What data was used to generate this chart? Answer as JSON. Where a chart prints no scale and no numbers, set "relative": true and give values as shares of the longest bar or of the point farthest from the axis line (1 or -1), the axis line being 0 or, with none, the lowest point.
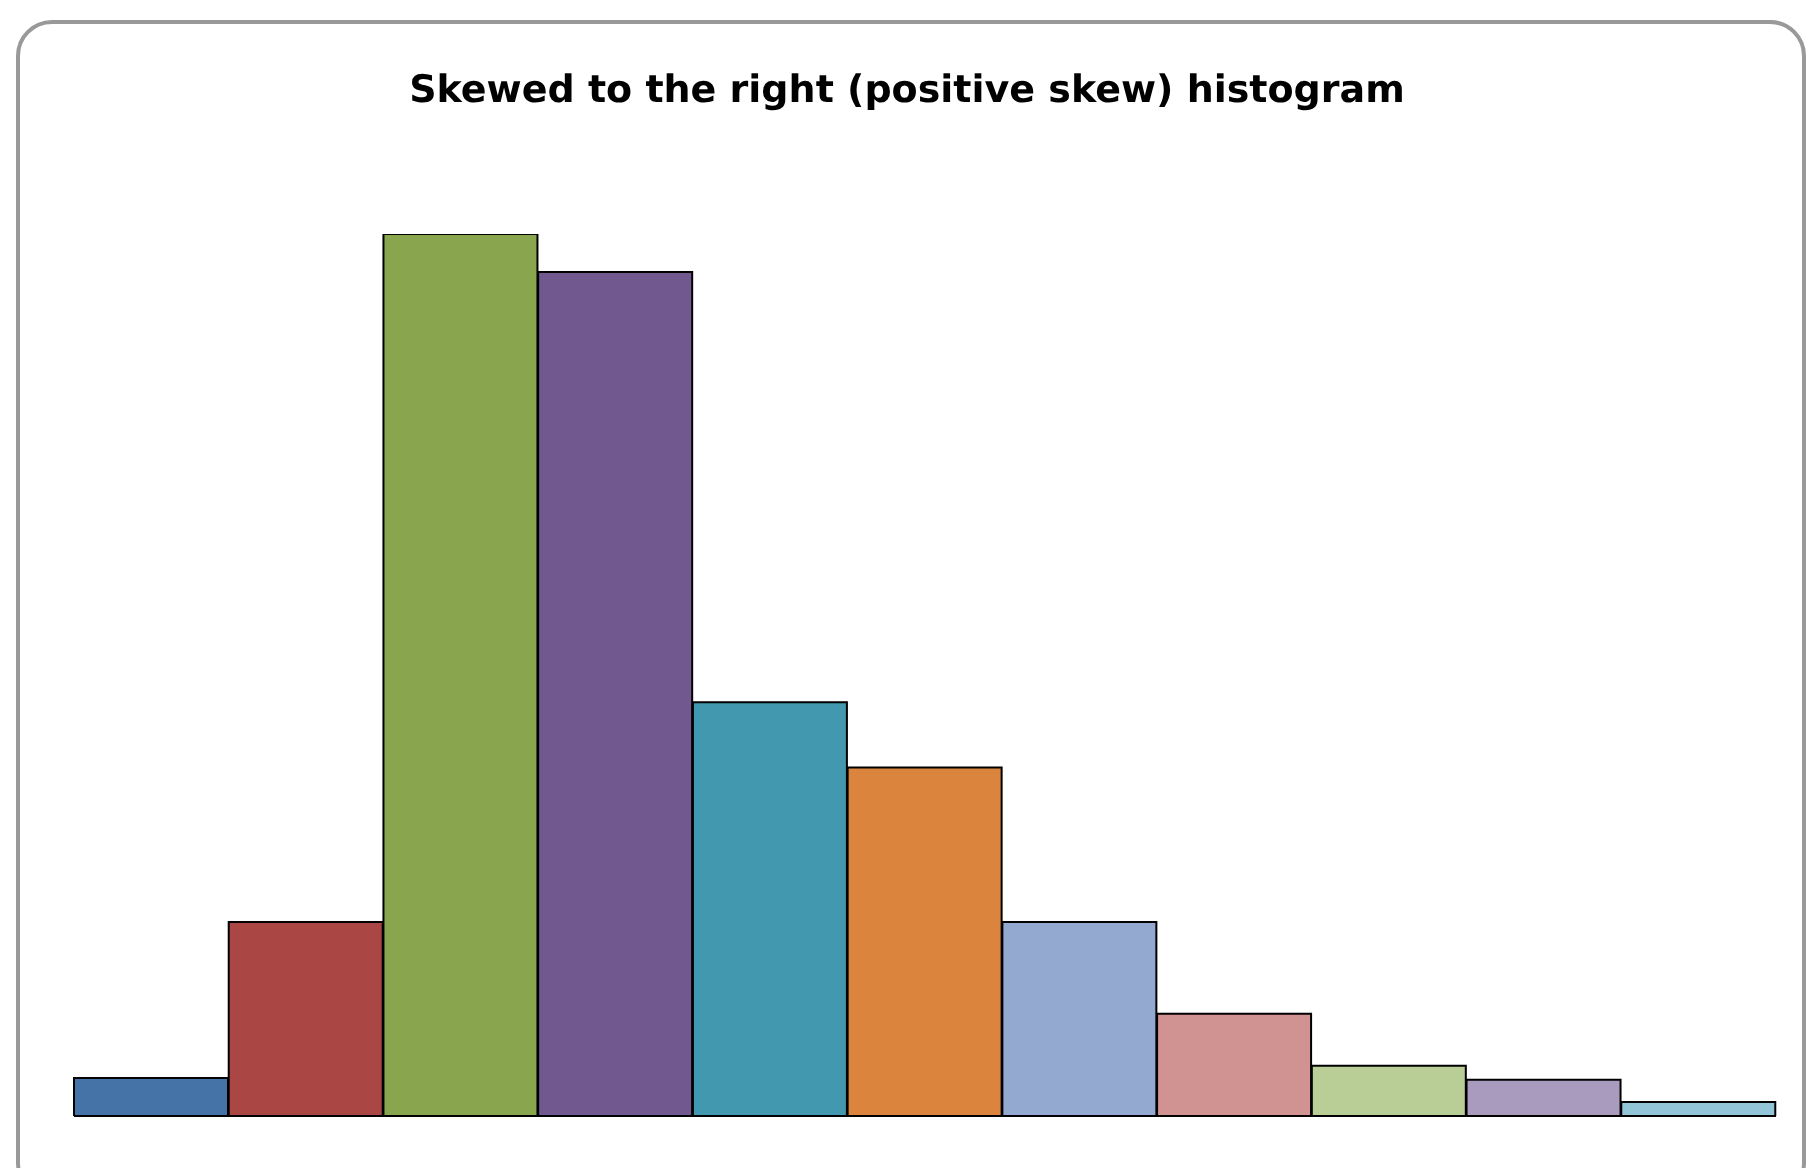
{
  "chart_data": {
    "type": "bar",
    "title": "Skewed to the right (positive skew) histogram",
    "relative": true,
    "categories": [
      null,
      null,
      null,
      null,
      null,
      null,
      null,
      null,
      null,
      null,
      null
    ],
    "values": [
      0.043,
      0.22,
      1,
      0.957,
      0.469,
      0.395,
      0.22,
      0.116,
      0.057,
      0.041,
      0.016
    ],
    "colors": [
      "#4572a7",
      "#aa4643",
      "#89a54e",
      "#71588f",
      "#4198af",
      "#db843d",
      "#93a9cf",
      "#d19392",
      "#b9cd96",
      "#a99bbd",
      "#92c5d8"
    ]
  }
}
